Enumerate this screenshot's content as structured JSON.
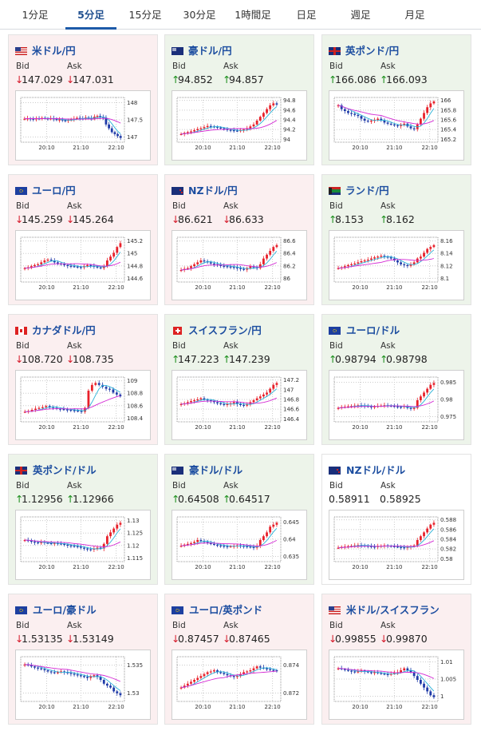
{
  "tabs": [
    {
      "label": "1分足",
      "active": false
    },
    {
      "label": "5分足",
      "active": true
    },
    {
      "label": "15分足",
      "active": false
    },
    {
      "label": "30分足",
      "active": false
    },
    {
      "label": "1時間足",
      "active": false
    },
    {
      "label": "日足",
      "active": false
    },
    {
      "label": "週足",
      "active": false
    },
    {
      "label": "月足",
      "active": false
    }
  ],
  "colors": {
    "accent": "#1d5aa8",
    "title": "#1d4ea0",
    "down": "#d5192a",
    "up": "#1b8e1b",
    "bg_down": "#fbeff0",
    "bg_up": "#edf4ea",
    "candle_up": "#e8202a",
    "candle_down": "#1e3aa8",
    "ma_fast": "#2ab3d9",
    "ma_slow": "#d42ad4"
  },
  "labels": {
    "bid": "Bid",
    "ask": "Ask"
  },
  "cards": [
    {
      "title": "米ドル/円",
      "flag": "us",
      "trend": "down",
      "bid_dir": "down",
      "ask_dir": "down",
      "bid": "147.029",
      "ask": "147.031",
      "icon": "arrow-down-icon"
    },
    {
      "title": "豪ドル/円",
      "flag": "au",
      "trend": "up",
      "bid_dir": "up",
      "ask_dir": "up",
      "bid": "94.852",
      "ask": "94.857",
      "icon": "arrow-up-icon"
    },
    {
      "title": "英ポンド/円",
      "flag": "gb",
      "trend": "up",
      "bid_dir": "up",
      "ask_dir": "up",
      "bid": "166.086",
      "ask": "166.093",
      "icon": "arrow-up-icon"
    },
    {
      "title": "ユーロ/円",
      "flag": "eu",
      "trend": "down",
      "bid_dir": "down",
      "ask_dir": "down",
      "bid": "145.259",
      "ask": "145.264",
      "icon": "arrow-down-icon"
    },
    {
      "title": "NZドル/円",
      "flag": "nz",
      "trend": "down",
      "bid_dir": "down",
      "ask_dir": "down",
      "bid": "86.621",
      "ask": "86.633",
      "icon": "arrow-down-icon"
    },
    {
      "title": "ランド/円",
      "flag": "za",
      "trend": "up",
      "bid_dir": "up",
      "ask_dir": "up",
      "bid": "8.153",
      "ask": "8.162",
      "icon": "arrow-up-icon"
    },
    {
      "title": "カナダドル/円",
      "flag": "ca",
      "trend": "down",
      "bid_dir": "down",
      "ask_dir": "down",
      "bid": "108.720",
      "ask": "108.735",
      "icon": "arrow-down-icon"
    },
    {
      "title": "スイスフラン/円",
      "flag": "ch",
      "trend": "up",
      "bid_dir": "up",
      "ask_dir": "up",
      "bid": "147.223",
      "ask": "147.239",
      "icon": "arrow-up-icon"
    },
    {
      "title": "ユーロ/ドル",
      "flag": "eu-us",
      "trend": "up",
      "bid_dir": "up",
      "ask_dir": "up",
      "bid": "0.98794",
      "ask": "0.98798",
      "icon": "arrow-up-icon"
    },
    {
      "title": "英ポンド/ドル",
      "flag": "gb-us",
      "trend": "up",
      "bid_dir": "up",
      "ask_dir": "up",
      "bid": "1.12956",
      "ask": "1.12966",
      "icon": "arrow-up-icon"
    },
    {
      "title": "豪ドル/ドル",
      "flag": "au-us",
      "trend": "up",
      "bid_dir": "up",
      "ask_dir": "up",
      "bid": "0.64508",
      "ask": "0.64517",
      "icon": "arrow-up-icon"
    },
    {
      "title": "NZドル/ドル",
      "flag": "nz-us",
      "trend": "flat",
      "bid_dir": "none",
      "ask_dir": "none",
      "bid": "0.58911",
      "ask": "0.58925",
      "icon": ""
    },
    {
      "title": "ユーロ/豪ドル",
      "flag": "eu-au",
      "trend": "down",
      "bid_dir": "down",
      "ask_dir": "down",
      "bid": "1.53135",
      "ask": "1.53149",
      "icon": "arrow-down-icon"
    },
    {
      "title": "ユーロ/英ポンド",
      "flag": "eu-gb",
      "trend": "down",
      "bid_dir": "down",
      "ask_dir": "down",
      "bid": "0.87457",
      "ask": "0.87465",
      "icon": "arrow-down-icon"
    },
    {
      "title": "米ドル/スイスフラン",
      "flag": "us-ch",
      "trend": "down",
      "bid_dir": "down",
      "ask_dir": "down",
      "bid": "0.99855",
      "ask": "0.99870",
      "icon": "arrow-down-icon"
    }
  ],
  "chart_data": [
    {
      "type": "candlestick",
      "title": "米ドル/円",
      "x_ticks": [
        "20:10",
        "21:10",
        "22:10"
      ],
      "y_ticks": [
        "147",
        "147.5",
        "148"
      ],
      "ylim": [
        146.9,
        148.2
      ],
      "shape": [
        0.55,
        0.56,
        0.55,
        0.54,
        0.56,
        0.55,
        0.57,
        0.56,
        0.55,
        0.56,
        0.54,
        0.52,
        0.53,
        0.51,
        0.5,
        0.52,
        0.53,
        0.55,
        0.57,
        0.56,
        0.55,
        0.58,
        0.57,
        0.55,
        0.6,
        0.62,
        0.6,
        0.58,
        0.4,
        0.3,
        0.2,
        0.15,
        0.1,
        0.05
      ]
    },
    {
      "type": "candlestick",
      "title": "豪ドル/円",
      "x_ticks": [
        "20:10",
        "21:10",
        "22:10"
      ],
      "y_ticks": [
        "94",
        "94.2",
        "94.4",
        "94.6",
        "94.8"
      ],
      "ylim": [
        93.85,
        94.9
      ],
      "shape": [
        0.15,
        0.18,
        0.2,
        0.22,
        0.25,
        0.28,
        0.3,
        0.33,
        0.36,
        0.35,
        0.34,
        0.32,
        0.3,
        0.28,
        0.26,
        0.25,
        0.24,
        0.23,
        0.25,
        0.27,
        0.3,
        0.35,
        0.4,
        0.5,
        0.6,
        0.7,
        0.8,
        0.9,
        0.95,
        0.92
      ]
    },
    {
      "type": "candlestick",
      "title": "英ポンド/円",
      "x_ticks": [
        "20:10",
        "21:10",
        "22:10"
      ],
      "y_ticks": [
        "165.2",
        "165.4",
        "165.6",
        "165.8",
        "166"
      ],
      "ylim": [
        165.1,
        166.1
      ],
      "shape": [
        0.9,
        0.8,
        0.75,
        0.7,
        0.68,
        0.65,
        0.62,
        0.55,
        0.5,
        0.48,
        0.5,
        0.52,
        0.55,
        0.5,
        0.45,
        0.42,
        0.4,
        0.38,
        0.36,
        0.4,
        0.42,
        0.35,
        0.3,
        0.28,
        0.4,
        0.55,
        0.7,
        0.85,
        0.95,
        1.0
      ]
    },
    {
      "type": "candlestick",
      "title": "ユーロ/円",
      "x_ticks": [
        "20:10",
        "21:10",
        "22:10"
      ],
      "y_ticks": [
        "144.6",
        "144.8",
        "145",
        "145.2"
      ],
      "ylim": [
        144.5,
        145.3
      ],
      "shape": [
        0.3,
        0.32,
        0.35,
        0.38,
        0.4,
        0.45,
        0.5,
        0.52,
        0.5,
        0.45,
        0.42,
        0.4,
        0.38,
        0.36,
        0.35,
        0.34,
        0.33,
        0.32,
        0.35,
        0.38,
        0.36,
        0.34,
        0.32,
        0.3,
        0.35,
        0.5,
        0.6,
        0.7,
        0.85,
        0.95
      ]
    },
    {
      "type": "candlestick",
      "title": "NZドル/円",
      "x_ticks": [
        "20:10",
        "21:10",
        "22:10"
      ],
      "y_ticks": [
        "86",
        "86.2",
        "86.4",
        "86.6"
      ],
      "ylim": [
        85.95,
        86.7
      ],
      "shape": [
        0.25,
        0.28,
        0.3,
        0.35,
        0.4,
        0.45,
        0.5,
        0.48,
        0.45,
        0.42,
        0.4,
        0.38,
        0.36,
        0.35,
        0.34,
        0.33,
        0.32,
        0.3,
        0.28,
        0.26,
        0.3,
        0.35,
        0.32,
        0.3,
        0.4,
        0.55,
        0.65,
        0.75,
        0.85,
        0.9
      ]
    },
    {
      "type": "candlestick",
      "title": "ランド/円",
      "x_ticks": [
        "20:10",
        "21:10",
        "22:10"
      ],
      "y_ticks": [
        "8.1",
        "8.12",
        "8.14",
        "8.16"
      ],
      "ylim": [
        8.095,
        8.17
      ],
      "shape": [
        0.3,
        0.32,
        0.35,
        0.38,
        0.4,
        0.42,
        0.45,
        0.48,
        0.5,
        0.52,
        0.55,
        0.58,
        0.6,
        0.62,
        0.6,
        0.58,
        0.55,
        0.5,
        0.45,
        0.4,
        0.38,
        0.36,
        0.4,
        0.45,
        0.55,
        0.6,
        0.7,
        0.8,
        0.85,
        0.9
      ]
    },
    {
      "type": "candlestick",
      "title": "カナダドル/円",
      "x_ticks": [
        "20:10",
        "21:10",
        "22:10"
      ],
      "y_ticks": [
        "108.4",
        "108.6",
        "108.8",
        "109"
      ],
      "ylim": [
        108.3,
        109.1
      ],
      "shape": [
        0.2,
        0.22,
        0.25,
        0.28,
        0.3,
        0.32,
        0.35,
        0.33,
        0.3,
        0.28,
        0.27,
        0.26,
        0.25,
        0.24,
        0.23,
        0.22,
        0.2,
        0.3,
        0.75,
        0.9,
        0.95,
        0.9,
        0.85,
        0.8,
        0.78,
        0.7,
        0.65,
        0.6
      ]
    },
    {
      "type": "candlestick",
      "title": "スイスフラン/円",
      "x_ticks": [
        "20:10",
        "21:10",
        "22:10"
      ],
      "y_ticks": [
        "146.4",
        "146.6",
        "146.8",
        "147",
        "147.2"
      ],
      "ylim": [
        146.3,
        147.3
      ],
      "shape": [
        0.4,
        0.42,
        0.45,
        0.48,
        0.5,
        0.52,
        0.55,
        0.52,
        0.5,
        0.48,
        0.45,
        0.42,
        0.4,
        0.38,
        0.4,
        0.42,
        0.45,
        0.4,
        0.38,
        0.36,
        0.4,
        0.45,
        0.5,
        0.55,
        0.6,
        0.65,
        0.7,
        0.8,
        0.9,
        0.95
      ]
    },
    {
      "type": "candlestick",
      "title": "ユーロ/ドル",
      "x_ticks": [
        "20:10",
        "21:10",
        "22:10"
      ],
      "y_ticks": [
        "0.975",
        "0.98",
        "0.985"
      ],
      "ylim": [
        0.973,
        0.989
      ],
      "shape": [
        0.3,
        0.32,
        0.33,
        0.34,
        0.35,
        0.36,
        0.37,
        0.36,
        0.35,
        0.34,
        0.33,
        0.34,
        0.35,
        0.36,
        0.37,
        0.36,
        0.35,
        0.34,
        0.33,
        0.32,
        0.35,
        0.3,
        0.28,
        0.3,
        0.5,
        0.6,
        0.7,
        0.8,
        0.9,
        0.95
      ]
    },
    {
      "type": "candlestick",
      "title": "英ポンド/ドル",
      "x_ticks": [
        "20:10",
        "21:10",
        "22:10"
      ],
      "y_ticks": [
        "1.115",
        "1.12",
        "1.125",
        "1.13"
      ],
      "ylim": [
        1.112,
        1.132
      ],
      "shape": [
        0.5,
        0.48,
        0.46,
        0.44,
        0.42,
        0.45,
        0.43,
        0.42,
        0.4,
        0.42,
        0.41,
        0.4,
        0.38,
        0.36,
        0.35,
        0.34,
        0.33,
        0.3,
        0.28,
        0.26,
        0.25,
        0.28,
        0.3,
        0.28,
        0.4,
        0.6,
        0.7,
        0.8,
        0.9,
        0.95
      ]
    },
    {
      "type": "candlestick",
      "title": "豪ドル/ドル",
      "x_ticks": [
        "20:10",
        "21:10",
        "22:10"
      ],
      "y_ticks": [
        "0.635",
        "0.64",
        "0.645"
      ],
      "ylim": [
        0.633,
        0.647
      ],
      "shape": [
        0.35,
        0.38,
        0.4,
        0.42,
        0.45,
        0.5,
        0.48,
        0.45,
        0.42,
        0.4,
        0.38,
        0.36,
        0.35,
        0.34,
        0.33,
        0.34,
        0.35,
        0.36,
        0.35,
        0.34,
        0.33,
        0.32,
        0.3,
        0.35,
        0.5,
        0.6,
        0.7,
        0.85,
        0.9,
        0.95
      ]
    },
    {
      "type": "candlestick",
      "title": "NZドル/ドル",
      "x_ticks": [
        "20:10",
        "21:10",
        "22:10"
      ],
      "y_ticks": [
        "0.58",
        "0.582",
        "0.584",
        "0.586",
        "0.588"
      ],
      "ylim": [
        0.579,
        0.589
      ],
      "shape": [
        0.3,
        0.32,
        0.33,
        0.34,
        0.35,
        0.36,
        0.37,
        0.36,
        0.35,
        0.34,
        0.33,
        0.32,
        0.34,
        0.35,
        0.36,
        0.35,
        0.34,
        0.33,
        0.32,
        0.31,
        0.3,
        0.32,
        0.34,
        0.36,
        0.5,
        0.6,
        0.7,
        0.8,
        0.9,
        0.95
      ]
    },
    {
      "type": "candlestick",
      "title": "ユーロ/豪ドル",
      "x_ticks": [
        "20:10",
        "21:10",
        "22:10"
      ],
      "y_ticks": [
        "1.53",
        "1.535"
      ],
      "ylim": [
        1.528,
        1.54
      ],
      "shape": [
        0.9,
        0.88,
        0.85,
        0.82,
        0.8,
        0.78,
        0.75,
        0.72,
        0.7,
        0.68,
        0.7,
        0.72,
        0.7,
        0.68,
        0.66,
        0.64,
        0.62,
        0.6,
        0.58,
        0.55,
        0.6,
        0.62,
        0.58,
        0.5,
        0.4,
        0.35,
        0.3,
        0.2,
        0.15,
        0.1
      ]
    },
    {
      "type": "candlestick",
      "title": "ユーロ/英ポンド",
      "x_ticks": [
        "20:10",
        "21:10",
        "22:10"
      ],
      "y_ticks": [
        "0.872",
        "0.874"
      ],
      "ylim": [
        0.8705,
        0.8755
      ],
      "shape": [
        0.3,
        0.35,
        0.4,
        0.45,
        0.5,
        0.55,
        0.6,
        0.65,
        0.7,
        0.72,
        0.75,
        0.7,
        0.68,
        0.65,
        0.62,
        0.6,
        0.58,
        0.6,
        0.65,
        0.7,
        0.72,
        0.75,
        0.8,
        0.85,
        0.82,
        0.8,
        0.78,
        0.76,
        0.75,
        0.74
      ]
    },
    {
      "type": "candlestick",
      "title": "米ドル/スイスフラン",
      "x_ticks": [
        "20:10",
        "21:10",
        "22:10"
      ],
      "y_ticks": [
        "1",
        "1.005",
        "1.01"
      ],
      "ylim": [
        0.998,
        1.011
      ],
      "shape": [
        0.8,
        0.78,
        0.76,
        0.74,
        0.72,
        0.7,
        0.72,
        0.74,
        0.72,
        0.7,
        0.68,
        0.7,
        0.68,
        0.66,
        0.65,
        0.64,
        0.66,
        0.68,
        0.7,
        0.75,
        0.8,
        0.75,
        0.7,
        0.6,
        0.5,
        0.4,
        0.3,
        0.2,
        0.1,
        0.05
      ]
    }
  ]
}
